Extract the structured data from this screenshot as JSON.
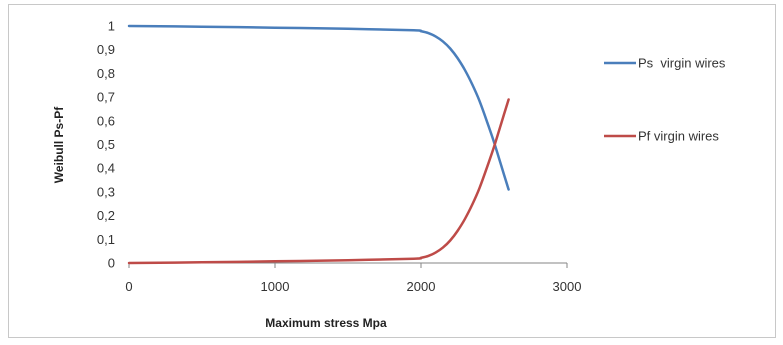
{
  "chart_data": {
    "type": "line",
    "title": "",
    "xlabel": "Maximum stress Mpa",
    "ylabel": "Weibull Ps-Pf",
    "xlim": [
      0,
      3000
    ],
    "ylim": [
      0,
      1
    ],
    "x_ticks": [
      0,
      1000,
      2000,
      3000
    ],
    "x_tick_labels": [
      "0",
      "1000",
      "2000",
      "3000"
    ],
    "y_ticks": [
      0,
      0.1,
      0.2,
      0.3,
      0.4,
      0.5,
      0.6,
      0.7,
      0.8,
      0.9,
      1
    ],
    "y_tick_labels": [
      "0",
      "0,1",
      "0,2",
      "0,3",
      "0,4",
      "0,5",
      "0,6",
      "0,7",
      "0,8",
      "0,9",
      "1"
    ],
    "grid": false,
    "legend_position": "right",
    "series": [
      {
        "name": "Ps  virgin wires",
        "color": "#4a7ebb",
        "x": [
          0,
          500,
          1000,
          1500,
          1950,
          2000,
          2050,
          2100,
          2150,
          2200,
          2250,
          2300,
          2350,
          2400,
          2450,
          2500,
          2550,
          2600
        ],
        "y": [
          1.0,
          0.997,
          0.993,
          0.988,
          0.982,
          0.978,
          0.97,
          0.956,
          0.935,
          0.905,
          0.865,
          0.815,
          0.755,
          0.685,
          0.6,
          0.51,
          0.41,
          0.31
        ]
      },
      {
        "name": "Pf virgin wires",
        "color": "#be4b48",
        "x": [
          0,
          500,
          1000,
          1500,
          1950,
          2000,
          2050,
          2100,
          2150,
          2200,
          2250,
          2300,
          2350,
          2400,
          2450,
          2500,
          2550,
          2600
        ],
        "y": [
          0.0,
          0.003,
          0.007,
          0.012,
          0.018,
          0.022,
          0.03,
          0.044,
          0.065,
          0.095,
          0.135,
          0.185,
          0.245,
          0.315,
          0.4,
          0.49,
          0.59,
          0.69
        ]
      }
    ]
  }
}
